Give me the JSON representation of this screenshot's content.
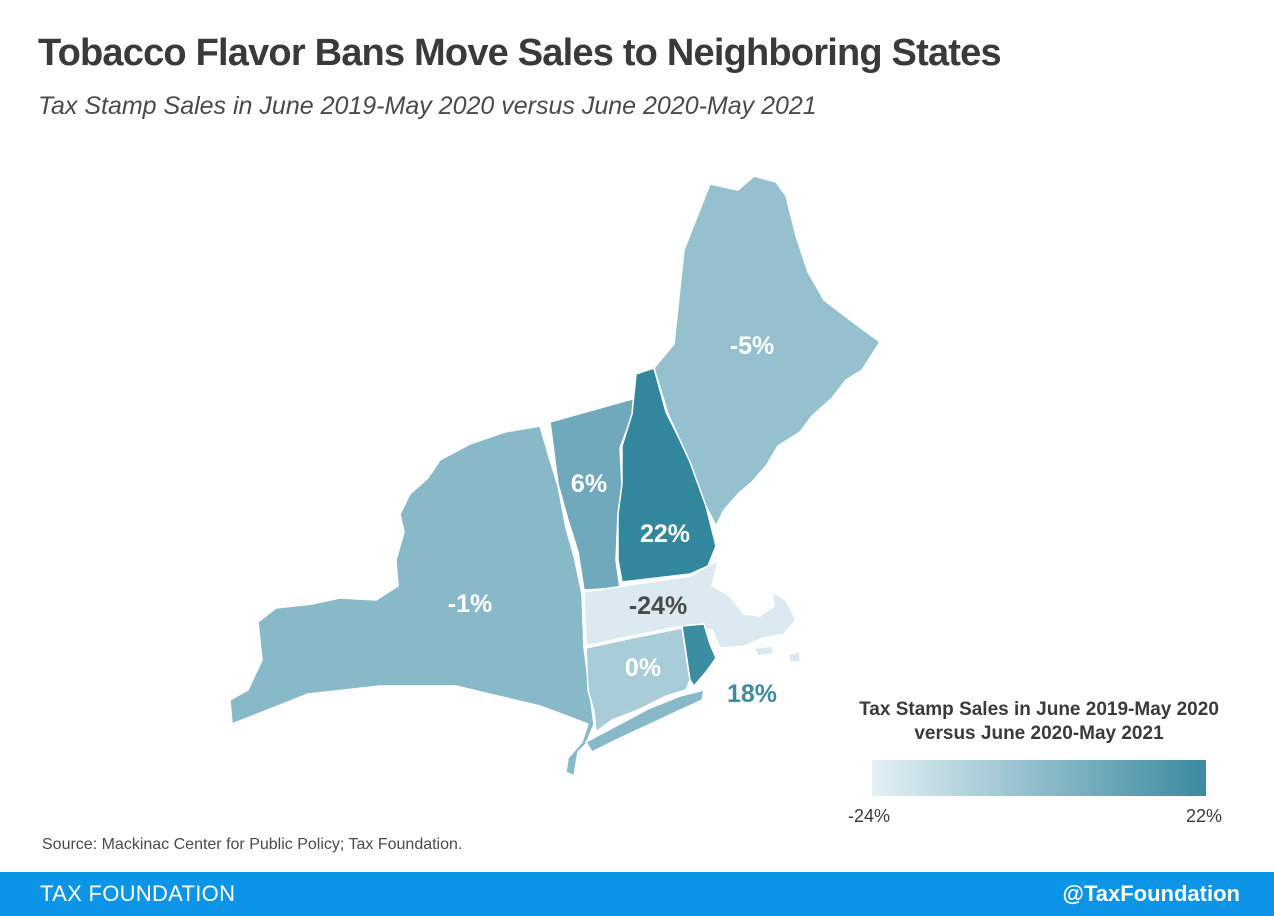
{
  "header": {
    "title": "Tobacco Flavor Bans Move Sales to Neighboring States",
    "subtitle": "Tax Stamp Sales in June 2019-May 2020 versus June 2020-May 2021"
  },
  "map": {
    "color_min": "#e3f0f5",
    "color_max": "#3a8aa0",
    "states": [
      {
        "id": "ny",
        "value_label": "-1%",
        "value": -1,
        "fill": "#87b9c8",
        "label_color": "#ffffff"
      },
      {
        "id": "vt",
        "value_label": "6%",
        "value": 6,
        "fill": "#6fa9bb",
        "label_color": "#ffffff"
      },
      {
        "id": "nh",
        "value_label": "22%",
        "value": 22,
        "fill": "#33879c",
        "label_color": "#ffffff"
      },
      {
        "id": "me",
        "value_label": "-5%",
        "value": -5,
        "fill": "#95c1cf",
        "label_color": "#ffffff"
      },
      {
        "id": "ma",
        "value_label": "-24%",
        "value": -24,
        "fill": "#dbeaf1",
        "label_color": "#4a4a4a"
      },
      {
        "id": "ct",
        "value_label": "0%",
        "value": 0,
        "fill": "#a8ccd8",
        "label_color": "#ffffff"
      },
      {
        "id": "ri",
        "value_label": "18%",
        "value": 18,
        "fill": "#3b8ea2",
        "label_color": "#3b8ea2"
      }
    ]
  },
  "legend": {
    "title": "Tax Stamp Sales in June 2019-May 2020 versus June 2020-May 2021",
    "min_label": "-24%",
    "max_label": "22%"
  },
  "source": "Source: Mackinac Center for Public Policy; Tax Foundation.",
  "footer": {
    "brand": "TAX FOUNDATION",
    "handle": "@TaxFoundation",
    "bg_color": "#0c94e6"
  }
}
